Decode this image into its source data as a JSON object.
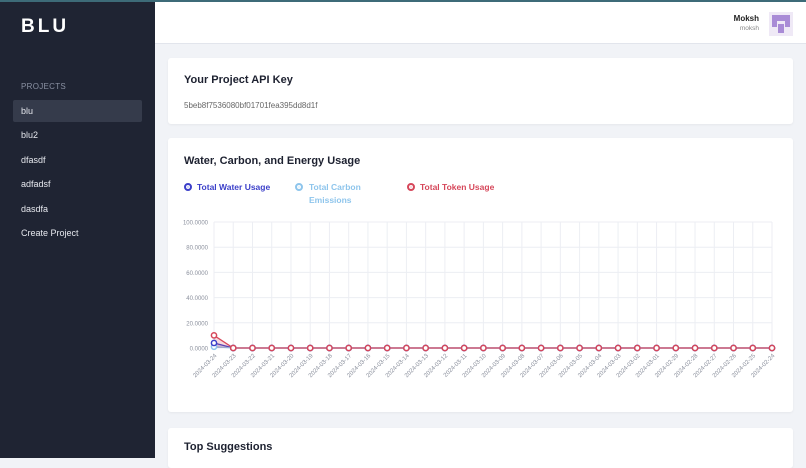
{
  "sidebar": {
    "logo": "BLU",
    "section": "PROJECTS",
    "items": [
      {
        "label": "blu",
        "active": true
      },
      {
        "label": "blu2"
      },
      {
        "label": "dfasdf"
      },
      {
        "label": "adfadsf"
      },
      {
        "label": "dasdfa"
      },
      {
        "label": "Create Project"
      }
    ]
  },
  "header": {
    "user_name": "Moksh",
    "user_handle": "moksh"
  },
  "api_card": {
    "title": "Your Project API Key",
    "key": "5beb8f7536080bf01701fea395dd8d1f"
  },
  "usage_card": {
    "title": "Water, Carbon, and Energy Usage"
  },
  "suggestions_card": {
    "title": "Top Suggestions"
  },
  "chart_data": {
    "type": "line",
    "ylim": [
      0,
      100
    ],
    "yticks": [
      "100.0000",
      "80.0000",
      "60.0000",
      "40.0000",
      "20.0000",
      "0.0000"
    ],
    "grid": true,
    "legend": "top-left",
    "categories": [
      "2024-03-24",
      "2024-03-23",
      "2024-03-22",
      "2024-03-21",
      "2024-03-20",
      "2024-03-19",
      "2024-03-18",
      "2024-03-17",
      "2024-03-16",
      "2024-03-15",
      "2024-03-14",
      "2024-03-13",
      "2024-03-12",
      "2024-03-11",
      "2024-03-10",
      "2024-03-09",
      "2024-03-08",
      "2024-03-07",
      "2024-03-06",
      "2024-03-05",
      "2024-03-04",
      "2024-03-03",
      "2024-03-02",
      "2024-03-01",
      "2024-02-29",
      "2024-02-28",
      "2024-02-27",
      "2024-02-26",
      "2024-02-25",
      "2024-02-24"
    ],
    "series": [
      {
        "name": "Total Water Usage",
        "color": "#3b3fc9",
        "values": [
          4,
          0,
          0,
          0,
          0,
          0,
          0,
          0,
          0,
          0,
          0,
          0,
          0,
          0,
          0,
          0,
          0,
          0,
          0,
          0,
          0,
          0,
          0,
          0,
          0,
          0,
          0,
          0,
          0,
          0
        ]
      },
      {
        "name": "Total Carbon Emissions",
        "color": "#8ec5ec",
        "values": [
          1,
          0,
          0,
          0,
          0,
          0,
          0,
          0,
          0,
          0,
          0,
          0,
          0,
          0,
          0,
          0,
          0,
          0,
          0,
          0,
          0,
          0,
          0,
          0,
          0,
          0,
          0,
          0,
          0,
          0
        ]
      },
      {
        "name": "Total Token Usage",
        "color": "#d6475a",
        "values": [
          10,
          0,
          0,
          0,
          0,
          0,
          0,
          0,
          0,
          0,
          0,
          0,
          0,
          0,
          0,
          0,
          0,
          0,
          0,
          0,
          0,
          0,
          0,
          0,
          0,
          0,
          0,
          0,
          0,
          0
        ]
      }
    ]
  }
}
